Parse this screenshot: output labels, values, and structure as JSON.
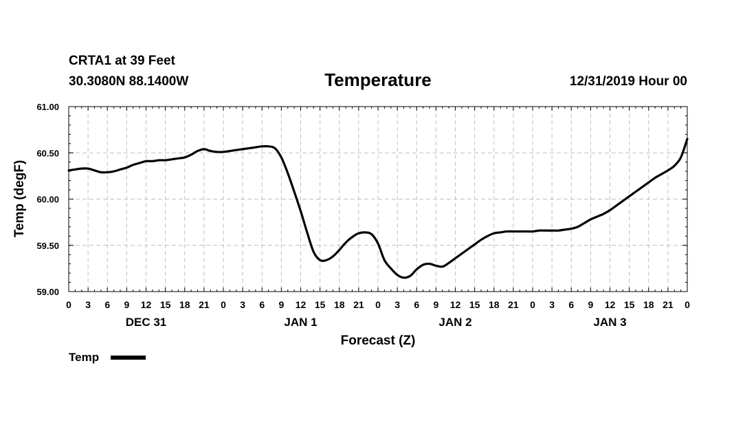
{
  "header": {
    "station": "CRTA1 at 39 Feet",
    "coords": "30.3080N 88.1400W",
    "datetime": "12/31/2019 Hour 00"
  },
  "colors": {
    "background": "#ffffff",
    "series": "#000000",
    "grid": "#c0c0c0",
    "axis": "#000000"
  },
  "chart_data": {
    "type": "line",
    "title": "Temperature",
    "xlabel": "Forecast (Z)",
    "ylabel": "Temp (degF)",
    "xlim": [
      0,
      96
    ],
    "ylim": [
      59.0,
      61.0
    ],
    "grid": true,
    "x_unit": "hours from 2019-12-31 00Z",
    "x_tick_values": [
      0,
      3,
      6,
      9,
      12,
      15,
      18,
      21,
      24,
      27,
      30,
      33,
      36,
      39,
      42,
      45,
      48,
      51,
      54,
      57,
      60,
      63,
      66,
      69,
      72,
      75,
      78,
      81,
      84,
      87,
      90,
      93,
      96
    ],
    "x_tick_labels": [
      "0",
      "3",
      "6",
      "9",
      "12",
      "15",
      "18",
      "21",
      "0",
      "3",
      "6",
      "9",
      "12",
      "15",
      "18",
      "21",
      "0",
      "3",
      "6",
      "9",
      "12",
      "15",
      "18",
      "21",
      "0",
      "3",
      "6",
      "9",
      "12",
      "15",
      "18",
      "21",
      "0"
    ],
    "day_labels": [
      {
        "x": 12,
        "label": "DEC 31"
      },
      {
        "x": 36,
        "label": "JAN 1"
      },
      {
        "x": 60,
        "label": "JAN 2"
      },
      {
        "x": 84,
        "label": "JAN 3"
      }
    ],
    "y_tick_values": [
      59.0,
      59.5,
      60.0,
      60.5,
      61.0
    ],
    "y_tick_labels": [
      "59.00",
      "59.50",
      "60.00",
      "60.50",
      "61.00"
    ],
    "series": [
      {
        "name": "Temp",
        "x": [
          0,
          1,
          2,
          3,
          4,
          5,
          6,
          7,
          8,
          9,
          10,
          11,
          12,
          13,
          14,
          15,
          16,
          17,
          18,
          19,
          20,
          21,
          22,
          23,
          24,
          25,
          26,
          27,
          28,
          29,
          30,
          31,
          32,
          33,
          34,
          35,
          36,
          37,
          38,
          39,
          40,
          41,
          42,
          43,
          44,
          45,
          46,
          47,
          48,
          49,
          50,
          51,
          52,
          53,
          54,
          55,
          56,
          57,
          58,
          59,
          60,
          61,
          62,
          63,
          64,
          65,
          66,
          67,
          68,
          69,
          70,
          71,
          72,
          73,
          74,
          75,
          76,
          77,
          78,
          79,
          80,
          81,
          82,
          83,
          84,
          85,
          86,
          87,
          88,
          89,
          90,
          91,
          92,
          93,
          94,
          95,
          96
        ],
        "values": [
          60.31,
          60.32,
          60.33,
          60.33,
          60.31,
          60.29,
          60.29,
          60.3,
          60.32,
          60.34,
          60.37,
          60.39,
          60.41,
          60.41,
          60.42,
          60.42,
          60.43,
          60.44,
          60.45,
          60.48,
          60.52,
          60.54,
          60.52,
          60.51,
          60.51,
          60.52,
          60.53,
          60.54,
          60.55,
          60.56,
          60.57,
          60.57,
          60.55,
          60.45,
          60.28,
          60.08,
          59.87,
          59.64,
          59.43,
          59.34,
          59.34,
          59.38,
          59.45,
          59.53,
          59.59,
          59.63,
          59.64,
          59.62,
          59.52,
          59.34,
          59.25,
          59.18,
          59.15,
          59.17,
          59.24,
          59.29,
          59.3,
          59.28,
          59.27,
          59.31,
          59.36,
          59.41,
          59.46,
          59.51,
          59.56,
          59.6,
          59.63,
          59.64,
          59.65,
          59.65,
          59.65,
          59.65,
          59.65,
          59.66,
          59.66,
          59.66,
          59.66,
          59.67,
          59.68,
          59.7,
          59.74,
          59.78,
          59.81,
          59.84,
          59.88,
          59.93,
          59.98,
          60.03,
          60.08,
          60.13,
          60.18,
          60.23,
          60.27,
          60.31,
          60.36,
          60.45,
          60.65
        ]
      }
    ],
    "legend": {
      "entries": [
        "Temp"
      ],
      "position": "bottom-left"
    }
  }
}
